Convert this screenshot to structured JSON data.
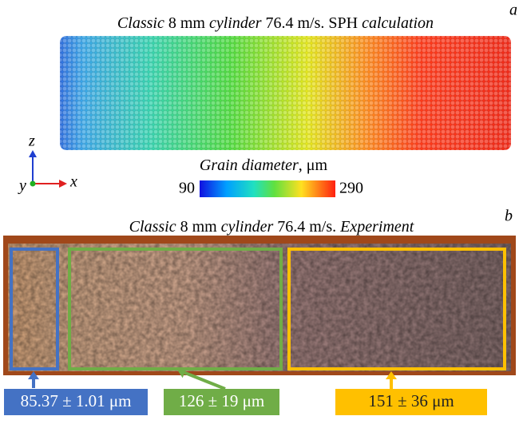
{
  "panel_a": {
    "letter": "a",
    "title": [
      {
        "text": "Classic",
        "italic": true
      },
      {
        "text": " 8 mm ",
        "italic": false
      },
      {
        "text": "cylinder",
        "italic": true
      },
      {
        "text": " 76.4 m/s. SPH ",
        "italic": false
      },
      {
        "text": "calculation",
        "italic": true
      }
    ],
    "axes": {
      "z": "z",
      "y": "y",
      "x": "x"
    },
    "colorbar": {
      "label": "Grain diameter",
      "unit": ", μm",
      "min": 90,
      "max": 290
    }
  },
  "panel_b": {
    "letter": "b",
    "title": [
      {
        "text": "Classic",
        "italic": true
      },
      {
        "text": " 8 mm ",
        "italic": false
      },
      {
        "text": "cylinder",
        "italic": true
      },
      {
        "text": " 76.4 m/s. ",
        "italic": false
      },
      {
        "text": "Experiment",
        "italic": true
      }
    ],
    "regions": [
      {
        "label": "85.37 ± 1.01 μm",
        "color": "#4472c4",
        "text_color": "#ffffff"
      },
      {
        "label": "126 ± 19 μm",
        "color": "#70ad47",
        "text_color": "#ffffff"
      },
      {
        "label": "151 ± 36 μm",
        "color": "#ffc000",
        "text_color": "#222222"
      }
    ]
  }
}
